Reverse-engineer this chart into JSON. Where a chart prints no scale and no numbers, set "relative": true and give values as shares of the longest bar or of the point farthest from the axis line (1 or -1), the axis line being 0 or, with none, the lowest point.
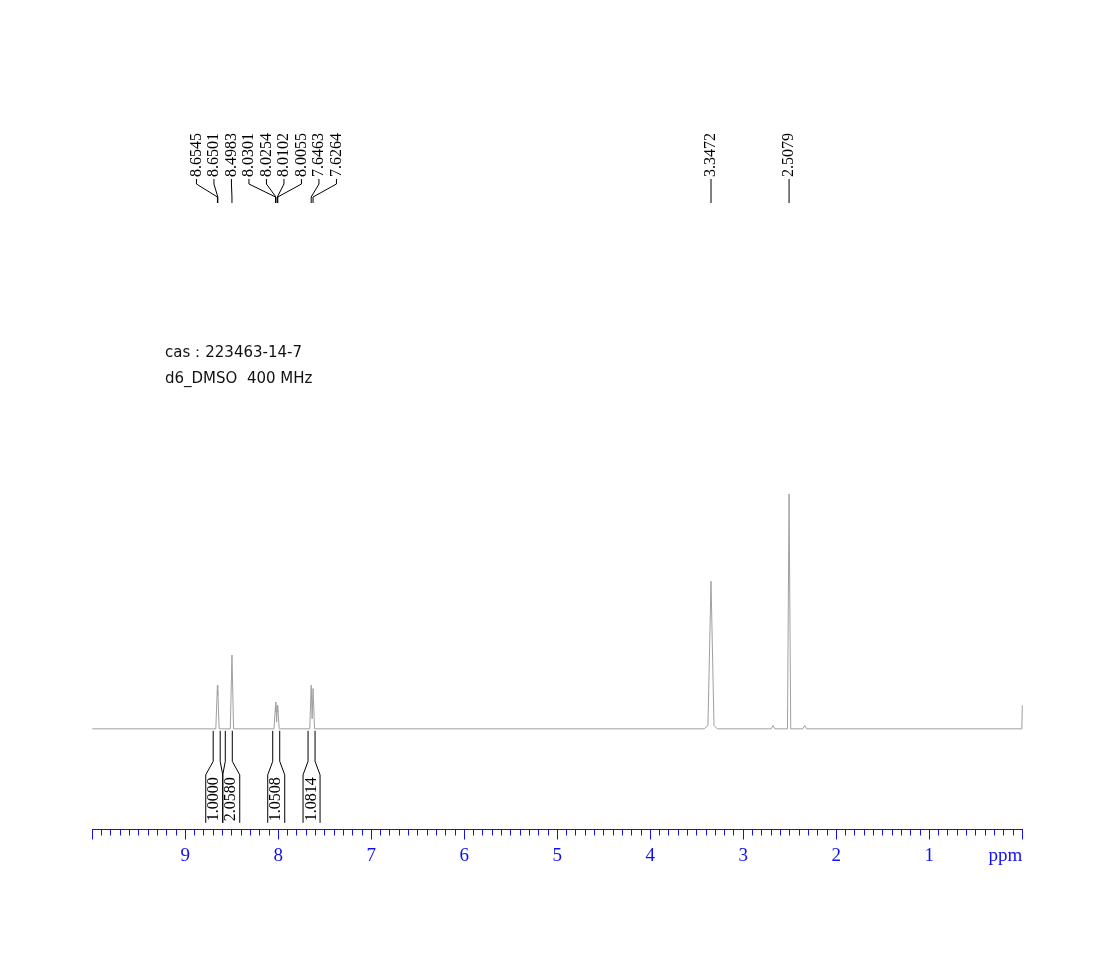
{
  "chart_data": {
    "type": "line",
    "relative": true,
    "xlabel": "ppm",
    "xlim": [
      10,
      0
    ],
    "xticks": [
      {
        "value": 10,
        "label": null
      },
      {
        "value": 9.9,
        "label": null
      },
      {
        "value": 9.8,
        "label": null
      },
      {
        "value": 9.7,
        "label": null
      },
      {
        "value": 9.6,
        "label": null
      },
      {
        "value": 9.5,
        "label": null
      },
      {
        "value": 9.4,
        "label": null
      },
      {
        "value": 9.3,
        "label": null
      },
      {
        "value": 9.2,
        "label": null
      },
      {
        "value": 9.1,
        "label": null
      },
      9,
      {
        "value": 8.9,
        "label": null
      },
      {
        "value": 8.8,
        "label": null
      },
      {
        "value": 8.7,
        "label": null
      },
      {
        "value": 8.6,
        "label": null
      },
      {
        "value": 8.5,
        "label": null
      },
      {
        "value": 8.4,
        "label": null
      },
      {
        "value": 8.3,
        "label": null
      },
      {
        "value": 8.2,
        "label": null
      },
      {
        "value": 8.1,
        "label": null
      },
      8,
      {
        "value": 7.9,
        "label": null
      },
      {
        "value": 7.8,
        "label": null
      },
      {
        "value": 7.7,
        "label": null
      },
      {
        "value": 7.6,
        "label": null
      },
      {
        "value": 7.5,
        "label": null
      },
      {
        "value": 7.4,
        "label": null
      },
      {
        "value": 7.3,
        "label": null
      },
      {
        "value": 7.2,
        "label": null
      },
      {
        "value": 7.1,
        "label": null
      },
      7,
      {
        "value": 6.9,
        "label": null
      },
      {
        "value": 6.8,
        "label": null
      },
      {
        "value": 6.7,
        "label": null
      },
      {
        "value": 6.6,
        "label": null
      },
      {
        "value": 6.5,
        "label": null
      },
      {
        "value": 6.4,
        "label": null
      },
      {
        "value": 6.3,
        "label": null
      },
      {
        "value": 6.2,
        "label": null
      },
      {
        "value": 6.1,
        "label": null
      },
      6,
      {
        "value": 5.9,
        "label": null
      },
      {
        "value": 5.8,
        "label": null
      },
      {
        "value": 5.7,
        "label": null
      },
      {
        "value": 5.6,
        "label": null
      },
      {
        "value": 5.5,
        "label": null
      },
      {
        "value": 5.4,
        "label": null
      },
      {
        "value": 5.3,
        "label": null
      },
      {
        "value": 5.2,
        "label": null
      },
      {
        "value": 5.1,
        "label": null
      },
      5,
      {
        "value": 4.9,
        "label": null
      },
      {
        "value": 4.8,
        "label": null
      },
      {
        "value": 4.7,
        "label": null
      },
      {
        "value": 4.6,
        "label": null
      },
      {
        "value": 4.5,
        "label": null
      },
      {
        "value": 4.4,
        "label": null
      },
      {
        "value": 4.3,
        "label": null
      },
      {
        "value": 4.2,
        "label": null
      },
      {
        "value": 4.1,
        "label": null
      },
      4,
      {
        "value": 3.9,
        "label": null
      },
      {
        "value": 3.8,
        "label": null
      },
      {
        "value": 3.7,
        "label": null
      },
      {
        "value": 3.6,
        "label": null
      },
      {
        "value": 3.5,
        "label": null
      },
      {
        "value": 3.4,
        "label": null
      },
      {
        "value": 3.3,
        "label": null
      },
      {
        "value": 3.2,
        "label": null
      },
      {
        "value": 3.1,
        "label": null
      },
      3,
      {
        "value": 2.9,
        "label": null
      },
      {
        "value": 2.8,
        "label": null
      },
      {
        "value": 2.7,
        "label": null
      },
      {
        "value": 2.6,
        "label": null
      },
      {
        "value": 2.5,
        "label": null
      },
      {
        "value": 2.4,
        "label": null
      },
      {
        "value": 2.3,
        "label": null
      },
      {
        "value": 2.2,
        "label": null
      },
      {
        "value": 2.1,
        "label": null
      },
      2,
      {
        "value": 1.9,
        "label": null
      },
      {
        "value": 1.8,
        "label": null
      },
      {
        "value": 1.7,
        "label": null
      },
      {
        "value": 1.6,
        "label": null
      },
      {
        "value": 1.5,
        "label": null
      },
      {
        "value": 1.4,
        "label": null
      },
      {
        "value": 1.3,
        "label": null
      },
      {
        "value": 1.2,
        "label": null
      },
      {
        "value": 1.1,
        "label": null
      },
      1,
      {
        "value": 0.9,
        "label": null
      },
      {
        "value": 0.8,
        "label": null
      },
      {
        "value": 0.7,
        "label": null
      },
      {
        "value": 0.6,
        "label": null
      },
      {
        "value": 0.5,
        "label": null
      },
      {
        "value": 0.4,
        "label": null
      },
      {
        "value": 0.3,
        "label": null
      },
      {
        "value": 0.2,
        "label": null
      },
      {
        "value": 0.1,
        "label": null
      },
      {
        "value": 0,
        "label": null
      }
    ],
    "x": [
      10,
      8.672,
      8.6545,
      8.6523,
      8.6501,
      8.636,
      8.516,
      8.4983,
      8.481,
      8.046,
      8.0301,
      8.0278,
      8.0254,
      8.0178,
      8.0102,
      8.0079,
      8.0055,
      7.99,
      7.662,
      7.6463,
      7.6364,
      7.6264,
      7.61,
      3.42,
      3.38,
      3.3472,
      3.315,
      3.28,
      2.7,
      2.68,
      2.66,
      2.525,
      2.5079,
      2.49,
      2.36,
      2.34,
      2.32,
      0.005,
      0
    ],
    "values": [
      0.3,
      0.3,
      0.43,
      0.4,
      0.42,
      0.3,
      0.3,
      0.52,
      0.3,
      0.3,
      0.37,
      0.35,
      0.38,
      0.32,
      0.37,
      0.35,
      0.37,
      0.3,
      0.3,
      0.43,
      0.33,
      0.42,
      0.3,
      0.3,
      0.31,
      0.74,
      0.31,
      0.3,
      0.3,
      0.31,
      0.3,
      0.3,
      1,
      0.3,
      0.3,
      0.31,
      0.3,
      0.3,
      0.37
    ],
    "color": "#a0a0a0",
    "marker": "none",
    "grid": false,
    "legend": false,
    "annotations": [
      "cas：223463-14-7",
      "d6_DMSO  400 MHz",
      {
        "text": "8.6545",
        "x": 8.6545
      },
      {
        "text": "8.6501",
        "x": 8.6501
      },
      {
        "text": "8.4983",
        "x": 8.4983
      },
      {
        "text": "8.0301",
        "x": 8.0301
      },
      {
        "text": "8.0254",
        "x": 8.0254
      },
      {
        "text": "8.0102",
        "x": 8.0102
      },
      {
        "text": "8.0055",
        "x": 8.0055
      },
      {
        "text": "7.6463",
        "x": 7.6463
      },
      {
        "text": "7.6264",
        "x": 7.6264
      },
      {
        "text": "3.3472",
        "x": 3.3472
      },
      {
        "text": "2.5079",
        "x": 2.5079
      },
      {
        "text": "1.0000",
        "x": 8.7,
        "y": 0.3
      },
      {
        "text": "2.0580",
        "x": 8.57,
        "y": 0.3
      },
      {
        "text": "1.0508",
        "x": 8.06,
        "y": 0.3
      },
      {
        "text": "1.0814",
        "x": 7.68,
        "y": 0.3
      }
    ]
  }
}
